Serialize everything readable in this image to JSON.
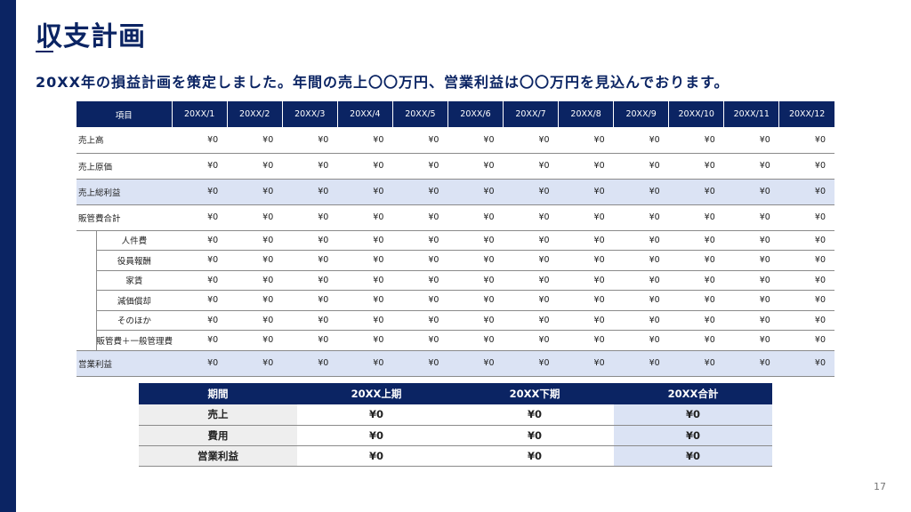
{
  "slide": {
    "title": "収支計画",
    "subtitle": "20XX年の損益計画を策定しました。年間の売上〇〇万円、営業利益は〇〇万円を見込んでおります。",
    "page_number": "17"
  },
  "colors": {
    "navy": "#0b2463",
    "highlight": "#dbe3f4",
    "row_label_bg": "#eeeeee"
  },
  "monthly_table": {
    "headers": [
      "項目",
      "20XX/1",
      "20XX/2",
      "20XX/3",
      "20XX/4",
      "20XX/5",
      "20XX/6",
      "20XX/7",
      "20XX/8",
      "20XX/9",
      "20XX/10",
      "20XX/11",
      "20XX/12"
    ],
    "rows": [
      {
        "label": "売上高",
        "values": [
          "¥0",
          "¥0",
          "¥0",
          "¥0",
          "¥0",
          "¥0",
          "¥0",
          "¥0",
          "¥0",
          "¥0",
          "¥0",
          "¥0"
        ]
      },
      {
        "label": "売上原価",
        "values": [
          "¥0",
          "¥0",
          "¥0",
          "¥0",
          "¥0",
          "¥0",
          "¥0",
          "¥0",
          "¥0",
          "¥0",
          "¥0",
          "¥0"
        ]
      },
      {
        "label": "売上総利益",
        "values": [
          "¥0",
          "¥0",
          "¥0",
          "¥0",
          "¥0",
          "¥0",
          "¥0",
          "¥0",
          "¥0",
          "¥0",
          "¥0",
          "¥0"
        ]
      },
      {
        "label": "販管費合計",
        "values": [
          "¥0",
          "¥0",
          "¥0",
          "¥0",
          "¥0",
          "¥0",
          "¥0",
          "¥0",
          "¥0",
          "¥0",
          "¥0",
          "¥0"
        ]
      },
      {
        "label": "人件費",
        "values": [
          "¥0",
          "¥0",
          "¥0",
          "¥0",
          "¥0",
          "¥0",
          "¥0",
          "¥0",
          "¥0",
          "¥0",
          "¥0",
          "¥0"
        ]
      },
      {
        "label": "役員報酬",
        "values": [
          "¥0",
          "¥0",
          "¥0",
          "¥0",
          "¥0",
          "¥0",
          "¥0",
          "¥0",
          "¥0",
          "¥0",
          "¥0",
          "¥0"
        ]
      },
      {
        "label": "家賃",
        "values": [
          "¥0",
          "¥0",
          "¥0",
          "¥0",
          "¥0",
          "¥0",
          "¥0",
          "¥0",
          "¥0",
          "¥0",
          "¥0",
          "¥0"
        ]
      },
      {
        "label": "減価償却",
        "values": [
          "¥0",
          "¥0",
          "¥0",
          "¥0",
          "¥0",
          "¥0",
          "¥0",
          "¥0",
          "¥0",
          "¥0",
          "¥0",
          "¥0"
        ]
      },
      {
        "label": "そのほか",
        "values": [
          "¥0",
          "¥0",
          "¥0",
          "¥0",
          "¥0",
          "¥0",
          "¥0",
          "¥0",
          "¥0",
          "¥0",
          "¥0",
          "¥0"
        ]
      },
      {
        "label": "販管費＋一般管理費",
        "values": [
          "¥0",
          "¥0",
          "¥0",
          "¥0",
          "¥0",
          "¥0",
          "¥0",
          "¥0",
          "¥0",
          "¥0",
          "¥0",
          "¥0"
        ]
      },
      {
        "label": "営業利益",
        "values": [
          "¥0",
          "¥0",
          "¥0",
          "¥0",
          "¥0",
          "¥0",
          "¥0",
          "¥0",
          "¥0",
          "¥0",
          "¥0",
          "¥0"
        ]
      }
    ]
  },
  "summary_table": {
    "headers": [
      "期間",
      "20XX上期",
      "20XX下期",
      "20XX合計"
    ],
    "rows": [
      {
        "label": "売上",
        "values": [
          "¥0",
          "¥0",
          "¥0"
        ]
      },
      {
        "label": "費用",
        "values": [
          "¥0",
          "¥0",
          "¥0"
        ]
      },
      {
        "label": "営業利益",
        "values": [
          "¥0",
          "¥0",
          "¥0"
        ]
      }
    ]
  }
}
